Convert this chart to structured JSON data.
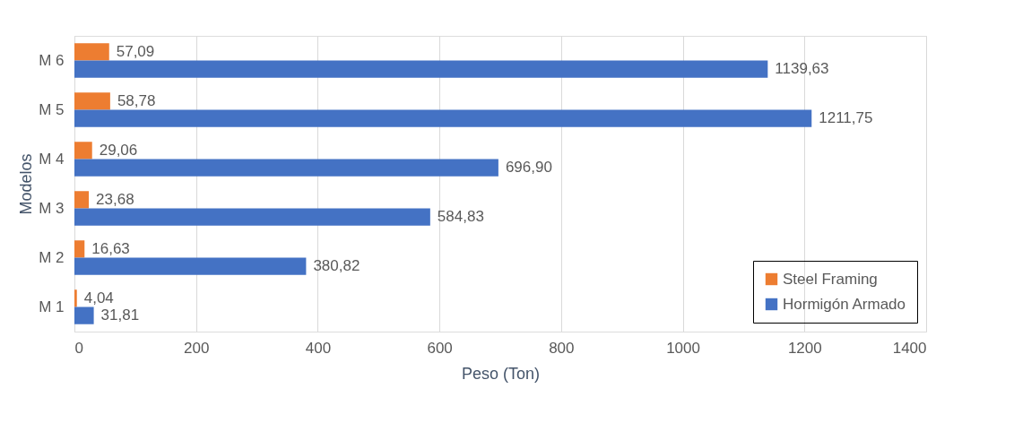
{
  "chart_data": {
    "type": "bar",
    "orientation": "horizontal",
    "xlabel": "Peso (Ton)",
    "ylabel": "Modelos",
    "categories": [
      "M 6",
      "M 5",
      "M 4",
      "M 3",
      "M 2",
      "M 1"
    ],
    "series": [
      {
        "name": "Steel Framing",
        "color": "#ed7d31",
        "values": [
          57.09,
          58.78,
          29.06,
          23.68,
          16.63,
          4.04
        ],
        "value_labels": [
          "57,09",
          "58,78",
          "29,06",
          "23,68",
          "16,63",
          "4,04"
        ]
      },
      {
        "name": "Hormigón Armado",
        "color": "#4472c4",
        "values": [
          1139.63,
          1211.75,
          696.9,
          584.83,
          380.82,
          31.81
        ],
        "value_labels": [
          "1139,63",
          "1211,75",
          "696,90",
          "584,83",
          "380,82",
          "31,81"
        ]
      }
    ],
    "xlim": [
      0,
      1400
    ],
    "xticks": [
      0,
      200,
      400,
      600,
      800,
      1000,
      1200,
      1400
    ],
    "grid": "x",
    "legend": "bottom right"
  }
}
